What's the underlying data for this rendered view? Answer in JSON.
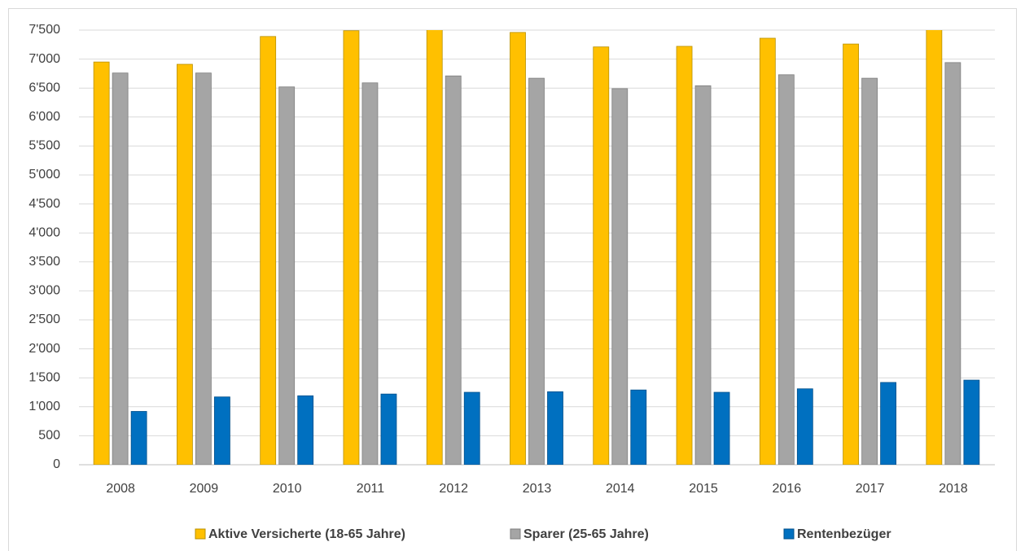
{
  "chart_data": {
    "type": "bar",
    "categories": [
      "2008",
      "2009",
      "2010",
      "2011",
      "2012",
      "2013",
      "2014",
      "2015",
      "2016",
      "2017",
      "2018"
    ],
    "series": [
      {
        "name": "Aktive Versicherte (18-65 Jahre)",
        "color": "#ffc000",
        "values": [
          6950,
          6910,
          7390,
          7490,
          7530,
          7460,
          7210,
          7220,
          7360,
          7260,
          7520
        ]
      },
      {
        "name": "Sparer (25-65 Jahre)",
        "color": "#a5a5a5",
        "values": [
          6760,
          6760,
          6520,
          6590,
          6710,
          6670,
          6490,
          6540,
          6730,
          6670,
          6940
        ]
      },
      {
        "name": "Rentenbezüger",
        "color": "#0070c0",
        "values": [
          920,
          1170,
          1190,
          1220,
          1250,
          1260,
          1290,
          1250,
          1310,
          1420,
          1460
        ]
      }
    ],
    "ylim": [
      0,
      7500
    ],
    "yticks": [
      0,
      500,
      {
        "value": 1000,
        "label": "1'000"
      },
      {
        "value": 1500,
        "label": "1'500"
      },
      {
        "value": 2000,
        "label": "2'000"
      },
      {
        "value": 2500,
        "label": "2'500"
      },
      {
        "value": 3000,
        "label": "3'000"
      },
      {
        "value": 3500,
        "label": "3'500"
      },
      {
        "value": 4000,
        "label": "4'000"
      },
      {
        "value": 4500,
        "label": "4'500"
      },
      {
        "value": 5000,
        "label": "5'000"
      },
      {
        "value": 5500,
        "label": "5'500"
      },
      {
        "value": 6000,
        "label": "6'000"
      },
      {
        "value": 6500,
        "label": "6'500"
      },
      {
        "value": 7000,
        "label": "7'000"
      },
      {
        "value": 7500,
        "label": "7'500"
      }
    ],
    "grid": true,
    "legend": "bottom"
  }
}
